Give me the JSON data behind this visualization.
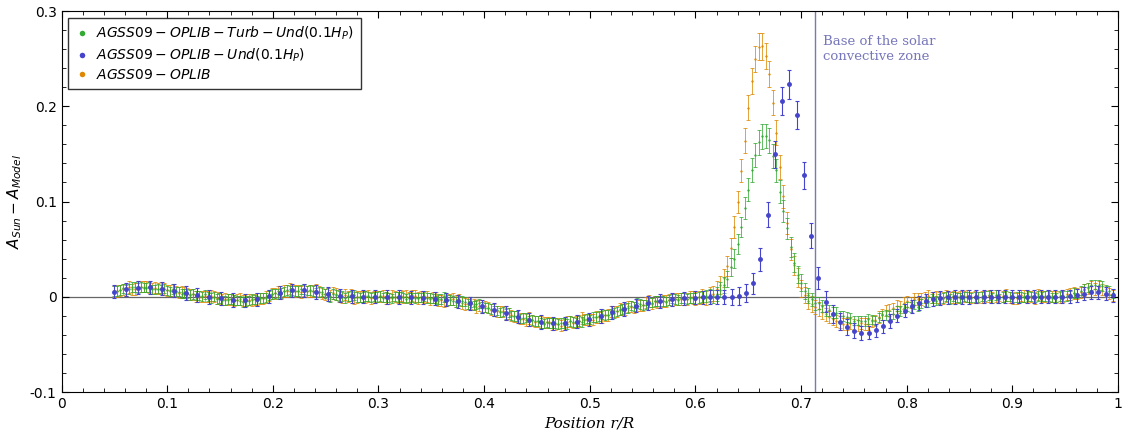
{
  "xlim": [
    0,
    1.0
  ],
  "ylim": [
    -0.1,
    0.3
  ],
  "xlabel": "Position r/R",
  "ylabel": "$A_{Sun} - A_{Model}$",
  "vline_x": 0.713,
  "vline_color": "#7777bb",
  "vline_label": "Base of the solar\nconvective zone",
  "hline_y": 0.0,
  "hline_color": "#666666",
  "series_colors": [
    "#33aa33",
    "#4444cc",
    "#dd8800"
  ],
  "yticks": [
    -0.1,
    0.0,
    0.1,
    0.2,
    0.3
  ],
  "xticks": [
    0,
    0.1,
    0.2,
    0.3,
    0.4,
    0.5,
    0.6,
    0.7,
    0.8,
    0.9,
    1.0
  ],
  "figsize": [
    11.28,
    4.36
  ],
  "dpi": 100
}
